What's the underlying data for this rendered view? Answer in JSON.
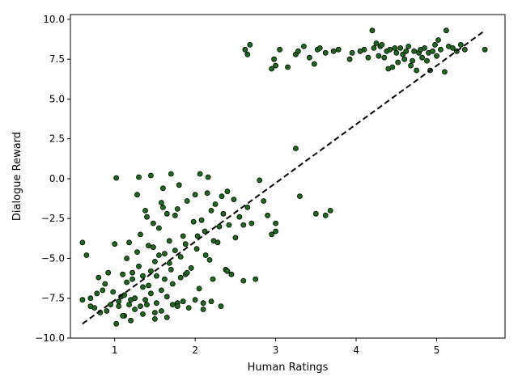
{
  "chart_data": {
    "type": "scatter",
    "title": "",
    "xlabel": "Human Ratings",
    "ylabel": "Dialogue Reward",
    "xlim": [
      0.45,
      5.85
    ],
    "ylim": [
      -10.0,
      10.3
    ],
    "x_ticks": [
      1,
      2,
      3,
      4,
      5
    ],
    "x_tick_labels": [
      "1",
      "2",
      "3",
      "4",
      "5"
    ],
    "y_ticks": [
      -10.0,
      -7.5,
      -5.0,
      -2.5,
      0.0,
      2.5,
      5.0,
      7.5,
      10.0
    ],
    "y_tick_labels": [
      "−10.0",
      "−7.5",
      "−5.0",
      "−2.5",
      "0.0",
      "2.5",
      "5.0",
      "7.5",
      "10.0"
    ],
    "grid": false,
    "marker_fill": "#1a6b1a",
    "marker_edge": "#000000",
    "trend_line": {
      "style": "dashed",
      "color": "#000000",
      "x": [
        0.6,
        5.6
      ],
      "y": [
        -9.1,
        9.3
      ]
    },
    "points": [
      [
        0.6,
        -4.0
      ],
      [
        0.65,
        -4.8
      ],
      [
        0.7,
        -7.5
      ],
      [
        0.75,
        -8.1
      ],
      [
        0.8,
        -6.2
      ],
      [
        0.85,
        -7.0
      ],
      [
        0.9,
        -8.3
      ],
      [
        0.95,
        -7.9
      ],
      [
        0.6,
        -7.6
      ],
      [
        0.7,
        -8.0
      ],
      [
        0.78,
        -7.2
      ],
      [
        0.82,
        -8.4
      ],
      [
        0.88,
        -6.6
      ],
      [
        0.92,
        -5.9
      ],
      [
        0.98,
        -7.1
      ],
      [
        1.0,
        -4.1
      ],
      [
        1.02,
        0.05
      ],
      [
        1.05,
        -8.0
      ],
      [
        1.08,
        -7.4
      ],
      [
        1.1,
        -6.0
      ],
      [
        1.12,
        -8.6
      ],
      [
        1.15,
        -5.0
      ],
      [
        1.18,
        -4.0
      ],
      [
        1.2,
        -7.6
      ],
      [
        1.22,
        -6.3
      ],
      [
        1.25,
        -8.2
      ],
      [
        1.28,
        -1.0
      ],
      [
        1.3,
        -5.5
      ],
      [
        1.32,
        -3.5
      ],
      [
        1.35,
        -6.8
      ],
      [
        1.38,
        -2.0
      ],
      [
        1.4,
        -7.9
      ],
      [
        1.42,
        -4.2
      ],
      [
        1.45,
        -5.8
      ],
      [
        1.48,
        -2.8
      ],
      [
        1.5,
        -8.4
      ],
      [
        1.52,
        -6.1
      ],
      [
        1.55,
        -3.1
      ],
      [
        1.58,
        -7.0
      ],
      [
        1.6,
        -1.8
      ],
      [
        1.62,
        -4.7
      ],
      [
        1.65,
        -8.7
      ],
      [
        1.68,
        -5.3
      ],
      [
        1.7,
        0.3
      ],
      [
        1.72,
        -6.6
      ],
      [
        1.75,
        -2.3
      ],
      [
        1.78,
        -7.8
      ],
      [
        1.8,
        -0.4
      ],
      [
        1.82,
        -4.9
      ],
      [
        1.85,
        -3.6
      ],
      [
        1.88,
        -6.0
      ],
      [
        1.9,
        -1.4
      ],
      [
        1.92,
        -8.1
      ],
      [
        1.95,
        -5.6
      ],
      [
        1.98,
        -2.7
      ],
      [
        1.05,
        -7.7
      ],
      [
        1.12,
        -7.3
      ],
      [
        1.18,
        -7.9
      ],
      [
        1.25,
        -7.5
      ],
      [
        1.32,
        -8.0
      ],
      [
        1.38,
        -7.6
      ],
      [
        1.45,
        -7.2
      ],
      [
        1.52,
        -7.8
      ],
      [
        1.58,
        -8.3
      ],
      [
        1.65,
        -7.4
      ],
      [
        1.72,
        -7.9
      ],
      [
        1.78,
        -8.0
      ],
      [
        1.85,
        -7.7
      ],
      [
        1.15,
        -6.5
      ],
      [
        1.22,
        -5.9
      ],
      [
        1.35,
        -6.1
      ],
      [
        1.42,
        -6.7
      ],
      [
        1.5,
        -5.2
      ],
      [
        1.62,
        -6.3
      ],
      [
        1.7,
        -5.7
      ],
      [
        1.82,
        -6.2
      ],
      [
        1.9,
        -5.9
      ],
      [
        1.28,
        -4.6
      ],
      [
        1.48,
        -4.3
      ],
      [
        1.55,
        -4.8
      ],
      [
        1.68,
        -3.9
      ],
      [
        1.75,
        -4.5
      ],
      [
        1.88,
        -4.1
      ],
      [
        1.4,
        -2.4
      ],
      [
        1.58,
        -1.5
      ],
      [
        1.65,
        -2.2
      ],
      [
        1.78,
        -1.9
      ],
      [
        1.3,
        0.1
      ],
      [
        1.45,
        0.2
      ],
      [
        1.6,
        -0.6
      ],
      [
        1.2,
        -8.9
      ],
      [
        1.35,
        -8.5
      ],
      [
        1.5,
        -8.8
      ],
      [
        1.02,
        -9.1
      ],
      [
        1.1,
        -8.6
      ],
      [
        2.0,
        -1.0
      ],
      [
        2.02,
        -4.4
      ],
      [
        2.05,
        -6.9
      ],
      [
        2.08,
        -2.6
      ],
      [
        2.1,
        -7.8
      ],
      [
        2.12,
        -3.3
      ],
      [
        2.15,
        -0.9
      ],
      [
        2.18,
        -5.1
      ],
      [
        2.2,
        -2.0
      ],
      [
        2.22,
        -6.3
      ],
      [
        2.25,
        -1.6
      ],
      [
        2.28,
        -4.0
      ],
      [
        2.3,
        -3.0
      ],
      [
        2.32,
        -8.0
      ],
      [
        2.35,
        -2.2
      ],
      [
        2.38,
        -5.7
      ],
      [
        2.4,
        -0.8
      ],
      [
        2.42,
        -2.9
      ],
      [
        2.45,
        -6.0
      ],
      [
        2.48,
        -1.3
      ],
      [
        2.5,
        -3.7
      ],
      [
        2.55,
        -2.4
      ],
      [
        2.6,
        -6.4
      ],
      [
        2.65,
        -1.8
      ],
      [
        2.7,
        -2.8
      ],
      [
        2.75,
        -6.3
      ],
      [
        2.8,
        -0.1
      ],
      [
        2.85,
        -1.4
      ],
      [
        2.9,
        -2.3
      ],
      [
        2.95,
        -3.5
      ],
      [
        3.0,
        -2.8
      ],
      [
        3.25,
        1.9
      ],
      [
        3.3,
        -1.1
      ],
      [
        2.03,
        -3.6
      ],
      [
        2.13,
        -4.8
      ],
      [
        2.23,
        -3.9
      ],
      [
        2.33,
        -1.1
      ],
      [
        2.06,
        0.3
      ],
      [
        2.16,
        0.1
      ],
      [
        2.0,
        -7.6
      ],
      [
        2.1,
        -8.2
      ],
      [
        2.2,
        -7.7
      ],
      [
        2.4,
        -5.8
      ],
      [
        2.6,
        -2.9
      ],
      [
        3.0,
        -3.3
      ],
      [
        3.5,
        -2.2
      ],
      [
        3.62,
        -2.3
      ],
      [
        3.68,
        -2.0
      ],
      [
        2.62,
        8.1
      ],
      [
        2.65,
        7.8
      ],
      [
        2.68,
        8.4
      ],
      [
        2.95,
        6.9
      ],
      [
        2.98,
        7.5
      ],
      [
        3.0,
        7.1
      ],
      [
        3.05,
        8.1
      ],
      [
        3.15,
        7.0
      ],
      [
        3.25,
        7.8
      ],
      [
        3.28,
        8.0
      ],
      [
        3.35,
        8.3
      ],
      [
        3.42,
        7.6
      ],
      [
        3.48,
        7.2
      ],
      [
        3.52,
        8.1
      ],
      [
        3.55,
        8.2
      ],
      [
        3.62,
        7.9
      ],
      [
        3.72,
        8.0
      ],
      [
        3.78,
        8.1
      ],
      [
        3.92,
        7.5
      ],
      [
        3.95,
        7.9
      ],
      [
        4.05,
        8.0
      ],
      [
        4.1,
        8.1
      ],
      [
        4.15,
        7.6
      ],
      [
        4.2,
        9.3
      ],
      [
        4.22,
        8.2
      ],
      [
        4.25,
        8.5
      ],
      [
        4.28,
        7.7
      ],
      [
        4.3,
        8.3
      ],
      [
        4.32,
        8.4
      ],
      [
        4.35,
        7.6
      ],
      [
        4.38,
        8.0
      ],
      [
        4.4,
        6.9
      ],
      [
        4.42,
        8.1
      ],
      [
        4.45,
        7.0
      ],
      [
        4.48,
        8.2
      ],
      [
        4.5,
        7.9
      ],
      [
        4.52,
        7.3
      ],
      [
        4.55,
        8.2
      ],
      [
        4.58,
        7.8
      ],
      [
        4.6,
        7.5
      ],
      [
        4.62,
        8.0
      ],
      [
        4.65,
        8.3
      ],
      [
        4.68,
        7.1
      ],
      [
        4.7,
        7.4
      ],
      [
        4.72,
        8.0
      ],
      [
        4.75,
        6.8
      ],
      [
        4.78,
        7.9
      ],
      [
        4.8,
        8.1
      ],
      [
        4.82,
        7.6
      ],
      [
        4.85,
        8.2
      ],
      [
        4.88,
        7.4
      ],
      [
        4.9,
        7.9
      ],
      [
        4.92,
        6.8
      ],
      [
        4.95,
        8.0
      ],
      [
        4.98,
        8.4
      ],
      [
        5.0,
        7.7
      ],
      [
        5.02,
        8.7
      ],
      [
        5.05,
        8.1
      ],
      [
        5.1,
        6.7
      ],
      [
        5.12,
        9.3
      ],
      [
        5.15,
        8.3
      ],
      [
        5.2,
        8.2
      ],
      [
        5.25,
        8.0
      ],
      [
        5.3,
        8.4
      ],
      [
        5.35,
        8.1
      ],
      [
        5.6,
        8.1
      ]
    ]
  }
}
